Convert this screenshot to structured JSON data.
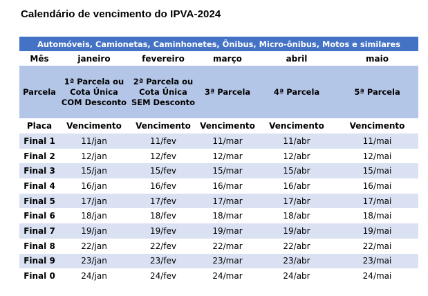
{
  "title": "Calendário de vencimento do IPVA-2024",
  "table": {
    "banner": "Automóveis, Camionetas, Caminhonetes, Ônibus, Micro-ônibus, Motos e similares",
    "month_row": [
      "Mês",
      "janeiro",
      "fevereiro",
      "março",
      "abril",
      "maio"
    ],
    "parcela_row": [
      "Parcela",
      "1ª Parcela ou Cota Única COM Desconto",
      "2ª Parcela ou Cota Única SEM Desconto",
      "3ª Parcela",
      "4ª Parcela",
      "5ª Parcela"
    ],
    "header_row": [
      "Placa",
      "Vencimento",
      "Vencimento",
      "Vencimento",
      "Vencimento",
      "Vencimento"
    ],
    "rows": [
      [
        "Final 1",
        "11/jan",
        "11/fev",
        "11/mar",
        "11/abr",
        "11/mai"
      ],
      [
        "Final 2",
        "12/jan",
        "12/fev",
        "12/mar",
        "12/abr",
        "12/mai"
      ],
      [
        "Final 3",
        "15/jan",
        "15/fev",
        "15/mar",
        "15/abr",
        "15/mai"
      ],
      [
        "Final 4",
        "16/jan",
        "16/fev",
        "16/mar",
        "16/abr",
        "16/mai"
      ],
      [
        "Final 5",
        "17/jan",
        "17/fev",
        "17/mar",
        "17/abr",
        "17/mai"
      ],
      [
        "Final 6",
        "18/jan",
        "18/fev",
        "18/mar",
        "18/abr",
        "18/mai"
      ],
      [
        "Final 7",
        "19/jan",
        "19/fev",
        "19/mar",
        "19/abr",
        "19/mai"
      ],
      [
        "Final 8",
        "22/jan",
        "22/fev",
        "22/mar",
        "22/abr",
        "22/mai"
      ],
      [
        "Final 9",
        "23/jan",
        "23/fev",
        "23/mar",
        "23/abr",
        "23/mai"
      ],
      [
        "Final 0",
        "24/jan",
        "24/fev",
        "24/mar",
        "24/abr",
        "24/mai"
      ]
    ]
  },
  "colors": {
    "banner_bg": "#4472c4",
    "parcela_bg": "#b4c6e7",
    "stripe_bg": "#d9e1f2"
  }
}
